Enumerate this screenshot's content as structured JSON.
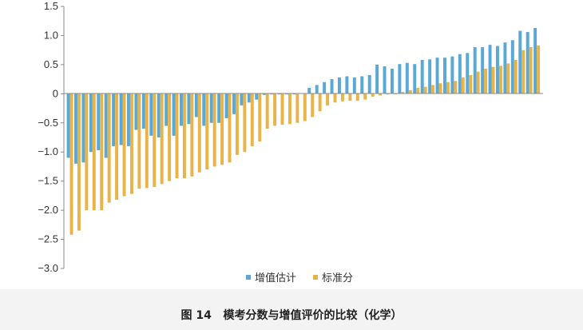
{
  "caption": {
    "figure_label": "图 14",
    "text": "模考分数与增值评价的比较（化学）"
  },
  "chart_data": {
    "type": "bar",
    "ylim": [
      -3.0,
      1.5
    ],
    "yticks": [
      "1.5",
      "1.0",
      "0.5",
      "0",
      "−0.5",
      "−1.0",
      "−1.5",
      "−2.0",
      "−2.5",
      "−3.0"
    ],
    "ytick_values": [
      1.5,
      1.0,
      0.5,
      0,
      -0.5,
      -1.0,
      -1.5,
      -2.0,
      -2.5,
      -3.0
    ],
    "grid": false,
    "legend_position": "bottom-center",
    "colors": {
      "增值估计": "#5aa8d6",
      "标准分": "#e8b44a"
    },
    "series": [
      {
        "name": "增值估计",
        "values": [
          -1.1,
          -1.2,
          -1.18,
          -1.0,
          -0.97,
          -1.1,
          -0.9,
          -0.88,
          -0.9,
          -0.62,
          -0.6,
          -0.72,
          -0.75,
          -0.55,
          -0.72,
          -0.55,
          -0.52,
          -0.4,
          -0.55,
          -0.5,
          -0.5,
          -0.42,
          -0.35,
          -0.2,
          -0.15,
          -0.1,
          -0.02,
          -0.01,
          0.0,
          0.0,
          0.0,
          0.01,
          0.1,
          0.15,
          0.2,
          0.25,
          0.28,
          0.3,
          0.28,
          0.3,
          0.32,
          0.5,
          0.47,
          0.43,
          0.51,
          0.53,
          0.51,
          0.58,
          0.59,
          0.62,
          0.62,
          0.64,
          0.68,
          0.7,
          0.8,
          0.8,
          0.84,
          0.82,
          0.88,
          0.92,
          1.08,
          1.06,
          1.13
        ]
      },
      {
        "name": "标准分",
        "values": [
          -2.42,
          -2.35,
          -2.0,
          -2.0,
          -2.0,
          -1.87,
          -1.82,
          -1.76,
          -1.72,
          -1.63,
          -1.62,
          -1.6,
          -1.55,
          -1.5,
          -1.45,
          -1.45,
          -1.42,
          -1.35,
          -1.3,
          -1.25,
          -1.22,
          -1.18,
          -1.05,
          -1.0,
          -0.9,
          -0.82,
          -0.6,
          -0.55,
          -0.53,
          -0.52,
          -0.5,
          -0.47,
          -0.4,
          -0.3,
          -0.2,
          -0.15,
          -0.13,
          -0.12,
          -0.12,
          -0.1,
          -0.05,
          -0.03,
          -0.01,
          -0.01,
          0.03,
          0.06,
          0.1,
          0.12,
          0.15,
          0.18,
          0.2,
          0.22,
          0.28,
          0.32,
          0.38,
          0.43,
          0.46,
          0.48,
          0.52,
          0.58,
          0.75,
          0.8,
          0.83
        ]
      }
    ]
  }
}
